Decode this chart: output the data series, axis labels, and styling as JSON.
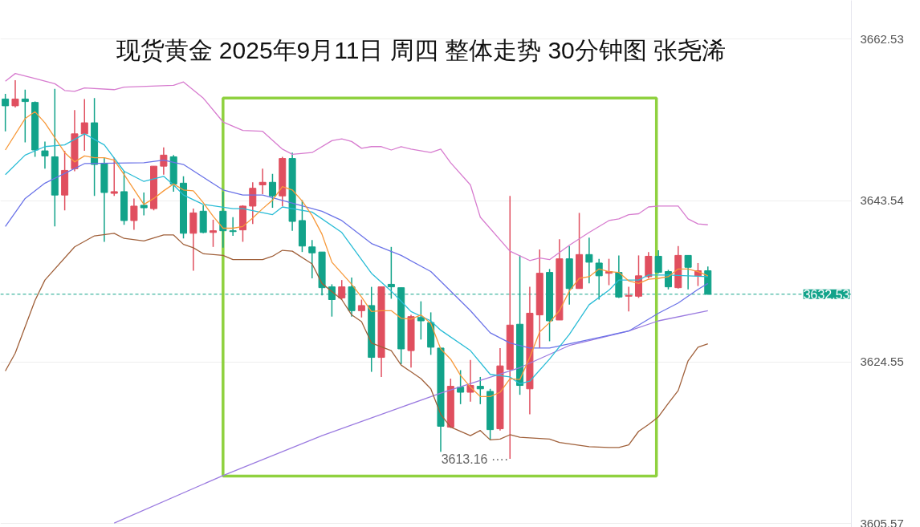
{
  "chart_data": {
    "type": "candlestick",
    "title": "现货黄金 2025年9月11日 周四 整体走势 30分钟图 张尧浠",
    "categories": [
      null,
      null,
      null,
      null,
      null,
      null,
      null,
      null,
      null,
      null,
      null,
      null,
      null,
      null,
      null,
      null,
      null,
      null,
      null,
      null,
      null,
      null,
      null,
      null,
      null,
      null,
      null,
      null,
      null,
      null,
      null,
      null,
      null,
      null,
      null,
      null,
      null,
      null,
      null,
      null,
      null,
      null,
      null,
      null,
      null,
      null,
      null,
      null,
      null,
      null,
      null,
      null,
      null,
      null,
      null,
      null,
      null,
      null,
      null,
      null,
      null,
      null,
      null,
      null,
      null,
      null,
      null,
      null,
      null,
      null,
      null,
      null,
      null,
      null,
      null,
      null,
      null,
      null,
      null,
      null,
      null,
      null,
      null,
      null,
      null,
      null
    ],
    "ohlc": [
      [
        3655.5,
        3656.1,
        3651.7,
        3654.7
      ],
      [
        3654.7,
        3657.7,
        3654.5,
        3655.5
      ],
      [
        3655.5,
        3656.6,
        3650.4,
        3655.2
      ],
      [
        3655.1,
        3655.2,
        3648.7,
        3649.5
      ],
      [
        3649.4,
        3650.5,
        3647.3,
        3648.8
      ],
      [
        3648.7,
        3656.7,
        3640.5,
        3644.2
      ],
      [
        3644.2,
        3649.4,
        3642.4,
        3647.1
      ],
      [
        3647.3,
        3654.2,
        3647.0,
        3651.4
      ],
      [
        3651.4,
        3655.5,
        3649.4,
        3652.7
      ],
      [
        3652.7,
        3655.6,
        3644.1,
        3647.8
      ],
      [
        3647.9,
        3648.6,
        3638.7,
        3644.5
      ],
      [
        3644.4,
        3648.6,
        3644.1,
        3644.6
      ],
      [
        3644.6,
        3647.0,
        3640.7,
        3641.2
      ],
      [
        3641.2,
        3643.8,
        3640.1,
        3642.9
      ],
      [
        3643.0,
        3644.5,
        3641.8,
        3642.7
      ],
      [
        3642.6,
        3647.6,
        3642.4,
        3647.6
      ],
      [
        3647.6,
        3649.8,
        3646.6,
        3648.9
      ],
      [
        3648.7,
        3648.9,
        3644.6,
        3645.5
      ],
      [
        3645.6,
        3646.4,
        3639.1,
        3639.7
      ],
      [
        3639.7,
        3642.6,
        3635.3,
        3642.1
      ],
      [
        3642.3,
        3643.0,
        3639.7,
        3639.8
      ],
      [
        3639.8,
        3641.3,
        3638.1,
        3640.0
      ],
      [
        3642.3,
        3644.6,
        3638.0,
        3640.0
      ],
      [
        3640.0,
        3641.6,
        3639.4,
        3639.9
      ],
      [
        3640.1,
        3643.0,
        3638.7,
        3642.9
      ],
      [
        3642.9,
        3645.7,
        3640.8,
        3645.0
      ],
      [
        3645.4,
        3647.3,
        3644.3,
        3645.7
      ],
      [
        3645.7,
        3646.7,
        3642.7,
        3644.1
      ],
      [
        3644.1,
        3648.7,
        3642.9,
        3648.5
      ],
      [
        3648.5,
        3649.2,
        3640.0,
        3641.1
      ],
      [
        3641.2,
        3643.6,
        3637.5,
        3638.2
      ],
      [
        3638.1,
        3638.9,
        3634.4,
        3637.4
      ],
      [
        3637.5,
        3637.5,
        3632.4,
        3633.3
      ],
      [
        3633.4,
        3633.7,
        3629.9,
        3631.9
      ],
      [
        3632.1,
        3634.2,
        3631.9,
        3633.4
      ],
      [
        3633.4,
        3634.5,
        3629.9,
        3630.6
      ],
      [
        3630.6,
        3631.9,
        3629.8,
        3631.2
      ],
      [
        3631.2,
        3633.4,
        3623.4,
        3625.1
      ],
      [
        3625.1,
        3633.4,
        3622.8,
        3633.4
      ],
      [
        3633.7,
        3638.1,
        3632.0,
        3633.4
      ],
      [
        3633.3,
        3633.3,
        3624.3,
        3626.1
      ],
      [
        3625.9,
        3630.1,
        3623.9,
        3629.9
      ],
      [
        3629.8,
        3631.7,
        3627.2,
        3629.4
      ],
      [
        3629.2,
        3630.4,
        3625.4,
        3626.3
      ],
      [
        3626.2,
        3626.2,
        3614.0,
        3617.0
      ],
      [
        3616.9,
        3622.6,
        3616.8,
        3621.7
      ],
      [
        3621.6,
        3623.6,
        3619.6,
        3621.0
      ],
      [
        3621.0,
        3624.8,
        3619.9,
        3621.8
      ],
      [
        3621.7,
        3622.8,
        3619.6,
        3621.4
      ],
      [
        3621.1,
        3621.4,
        3615.4,
        3616.6
      ],
      [
        3616.7,
        3626.2,
        3616.5,
        3624.1
      ],
      [
        3623.7,
        3644.1,
        3613.16,
        3628.9
      ],
      [
        3629.0,
        3637.1,
        3620.7,
        3621.8
      ],
      [
        3621.4,
        3633.4,
        3618.4,
        3630.3
      ],
      [
        3630.1,
        3637.8,
        3626.2,
        3635.0
      ],
      [
        3635.1,
        3635.5,
        3627.0,
        3629.4
      ],
      [
        3629.5,
        3639.0,
        3629.5,
        3636.7
      ],
      [
        3636.7,
        3638.2,
        3631.3,
        3633.2
      ],
      [
        3633.2,
        3642.1,
        3633.2,
        3637.2
      ],
      [
        3637.2,
        3639.2,
        3633.8,
        3636.3
      ],
      [
        3636.2,
        3636.7,
        3631.9,
        3634.7
      ],
      [
        3635.0,
        3636.7,
        3633.6,
        3635.2
      ],
      [
        3635.1,
        3637.1,
        3632.1,
        3632.2
      ],
      [
        3632.3,
        3633.4,
        3630.5,
        3632.4
      ],
      [
        3632.3,
        3637.1,
        3632.1,
        3634.7
      ],
      [
        3634.6,
        3637.5,
        3634.4,
        3637.0
      ],
      [
        3637.0,
        3637.7,
        3635.0,
        3635.1
      ],
      [
        3635.2,
        3635.4,
        3633.1,
        3633.4
      ],
      [
        3633.3,
        3638.2,
        3633.2,
        3637.1
      ],
      [
        3637.1,
        3637.1,
        3633.1,
        3635.7
      ],
      [
        3634.7,
        3636.2,
        3633.5,
        3635.3
      ],
      [
        3635.3,
        3635.8,
        3632.5,
        3632.53
      ],
      null,
      null,
      null,
      null,
      null,
      null,
      null,
      null,
      null,
      null,
      null,
      null,
      null,
      null
    ],
    "series": [
      {
        "type": "line",
        "color": "#9b7be0",
        "values": [
          null,
          null,
          null,
          null,
          null,
          null,
          null,
          null,
          null,
          null,
          null,
          3605.6,
          null,
          null,
          null,
          null,
          null,
          null,
          null,
          null,
          null,
          null,
          3611.2,
          null,
          null,
          null,
          null,
          null,
          null,
          null,
          null,
          null,
          3615.9,
          null,
          null,
          null,
          null,
          null,
          null,
          null,
          null,
          null,
          null,
          null,
          3620.9,
          null,
          null,
          null,
          null,
          null,
          null,
          null,
          3623.9,
          null,
          null,
          null,
          null,
          3626.5,
          null,
          null,
          null,
          null,
          null,
          3628.2,
          null,
          null,
          3629.4,
          null,
          null,
          null,
          null,
          3630.6,
          null,
          null,
          null,
          null,
          null,
          null,
          null,
          null,
          null,
          null,
          null,
          null,
          null,
          null
        ]
      },
      {
        "type": "line",
        "color": "#6b73e8",
        "values": [
          3640.5,
          null,
          3643.8,
          null,
          3645.6,
          null,
          null,
          null,
          3647.9,
          null,
          null,
          null,
          null,
          null,
          3648.0,
          null,
          3648.3,
          null,
          3647.8,
          null,
          null,
          null,
          3644.8,
          null,
          3644.2,
          null,
          3644.2,
          null,
          null,
          null,
          null,
          null,
          3642.3,
          null,
          3641.2,
          null,
          null,
          3638.5,
          null,
          null,
          3637.1,
          null,
          null,
          3635.2,
          null,
          null,
          null,
          3630.6,
          null,
          3628.0,
          null,
          3626.8,
          null,
          3626.2,
          null,
          3626.2,
          null,
          null,
          null,
          3627.2,
          null,
          null,
          null,
          3628.2,
          null,
          null,
          3630.3,
          null,
          3631.5,
          null,
          3633.1,
          3633.8,
          null,
          null,
          null,
          null,
          null,
          null,
          null,
          null,
          null,
          null,
          null,
          null,
          null,
          null
        ]
      },
      {
        "type": "line",
        "color": "#29bcd6",
        "values": [
          3646.6,
          null,
          3648.9,
          null,
          3649.9,
          null,
          3650.1,
          null,
          3651.4,
          null,
          3650.1,
          null,
          3647.0,
          null,
          3645.8,
          null,
          3646.4,
          3645.4,
          3644.2,
          null,
          3643.1,
          null,
          null,
          3642.6,
          3642.6,
          null,
          null,
          3641.9,
          3642.8,
          null,
          null,
          3642.2,
          null,
          null,
          3639.8,
          null,
          null,
          3635.0,
          null,
          3632.9,
          null,
          3630.5,
          null,
          3629.4,
          3628.3,
          null,
          null,
          3625.9,
          null,
          3623.1,
          null,
          3622.8,
          3622.0,
          3622.3,
          null,
          3624.9,
          null,
          3627.8,
          null,
          3631.3,
          null,
          3633.0,
          3634.2,
          null,
          3634.2,
          3634.8,
          null,
          3634.8,
          null,
          null,
          null,
          3634.6,
          null,
          null,
          null,
          null,
          null,
          null,
          null,
          null,
          null,
          null,
          null,
          null,
          null,
          null
        ]
      },
      {
        "type": "line",
        "color": "#f7993a",
        "values": [
          3649.5,
          null,
          3653.2,
          3654.0,
          3652.7,
          null,
          3649.2,
          3648.1,
          3648.8,
          3648.6,
          3648.6,
          3648.3,
          3646.6,
          null,
          3643.1,
          3643.8,
          3644.7,
          3645.5,
          3644.8,
          3644.7,
          3643.3,
          3641.7,
          3640.3,
          3640.3,
          3640.5,
          3641.5,
          3642.6,
          3643.6,
          3645.2,
          3644.8,
          3643.5,
          3641.8,
          3639.6,
          3636.3,
          3635.0,
          3633.7,
          3632.2,
          3630.5,
          3630.6,
          3630.6,
          3629.7,
          3629.6,
          3630.1,
          3629.1,
          3626.1,
          3624.9,
          3623.0,
          3621.6,
          3620.5,
          3620.5,
          3621.0,
          3622.6,
          3622.5,
          3625.1,
          3628.1,
          3629.2,
          3630.6,
          3632.9,
          3634.4,
          3634.6,
          3635.5,
          3635.2,
          3635.1,
          3634.1,
          3633.8,
          3634.3,
          3634.4,
          3634.6,
          3635.5,
          3635.5,
          3635.2,
          3634.7,
          null,
          null,
          null,
          null,
          null,
          null,
          null,
          null,
          null,
          null,
          null,
          null,
          null,
          null
        ]
      },
      {
        "type": "line",
        "color": "#d77ccf",
        "values": [
          3657.6,
          3658.5,
          null,
          3657.9,
          null,
          3657.3,
          3656.5,
          3656.4,
          3656.8,
          null,
          null,
          3656.6,
          3656.9,
          null,
          null,
          null,
          null,
          3657.1,
          3657.5,
          null,
          3655.6,
          null,
          3652.8,
          null,
          3651.8,
          null,
          3651.7,
          null,
          3649.6,
          3649.0,
          null,
          3649.2,
          null,
          3650.6,
          3650.8,
          3650.5,
          3649.7,
          3649.9,
          3649.9,
          3649.5,
          3649.9,
          3649.6,
          null,
          3649.2,
          3649.6,
          3648.0,
          null,
          3645.4,
          3641.6,
          null,
          null,
          3637.6,
          null,
          3636.5,
          3636.8,
          3636.6,
          null,
          3638.3,
          null,
          3639.8,
          null,
          3641.2,
          3641.4,
          3641.9,
          3642.0,
          3642.8,
          3642.9,
          null,
          3642.9,
          3641.4,
          3640.8,
          3640.7,
          null,
          null,
          null,
          null,
          null,
          null,
          null,
          null,
          null,
          null,
          null,
          null,
          null,
          null
        ]
      },
      {
        "type": "line",
        "color": "#a0603a",
        "values": [
          3623.5,
          3625.6,
          null,
          3631.8,
          3634.2,
          null,
          null,
          3638.1,
          null,
          3639.4,
          null,
          3639.7,
          3639.1,
          null,
          3638.8,
          null,
          3639.5,
          3639.5,
          3638.4,
          3638.0,
          3637.3,
          null,
          3637.1,
          3636.6,
          3636.6,
          null,
          3636.6,
          3637.0,
          3637.7,
          3637.6,
          null,
          3636.1,
          3633.8,
          null,
          3631.9,
          3630.1,
          3629.3,
          3626.8,
          null,
          3625.9,
          3624.2,
          null,
          3622.6,
          3621.4,
          3618.4,
          3616.9,
          null,
          3615.9,
          3616.5,
          3615.4,
          3615.5,
          3616.0,
          3615.7,
          null,
          null,
          3615.5,
          3615.1,
          null,
          null,
          3614.6,
          null,
          3614.5,
          3614.5,
          3614.8,
          3616.4,
          3617.2,
          3618.1,
          3619.7,
          3621.2,
          3624.7,
          3626.3,
          3626.7,
          null,
          null,
          null,
          null,
          null,
          null,
          null,
          null,
          null,
          null,
          null,
          null,
          null,
          null
        ]
      }
    ],
    "ylim": [
      3605.1,
      3667.1
    ],
    "yticks": [
      3605.57,
      3624.55,
      3643.54,
      3662.53
    ],
    "tick_labels": "y",
    "grid": "y",
    "ref_lines": [
      {
        "axis": "y",
        "value": 3632.53,
        "label": "3632.53",
        "color": "#12a38a",
        "line_style": "dashed"
      }
    ],
    "annotations": [
      "3613.16 ····"
    ]
  }
}
